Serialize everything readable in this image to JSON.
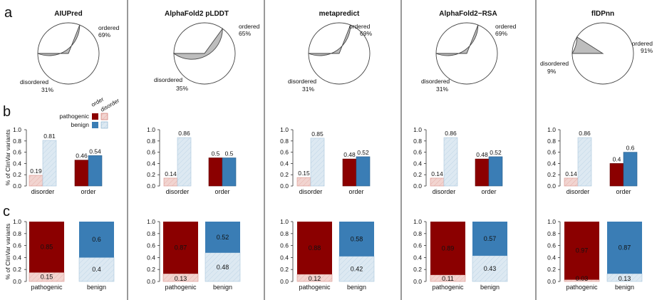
{
  "panel_letters": [
    "a",
    "b",
    "c"
  ],
  "ylabel": "% of ClinVar variants",
  "legend": {
    "col_headers": [
      "order",
      "disorder"
    ],
    "rows": [
      "pathogenic",
      "benign"
    ]
  },
  "colors": {
    "pathogenic_order": "#8b0000",
    "pathogenic_disorder": "#f2d4d0",
    "benign_order": "#3a7db5",
    "benign_disorder": "#dde9f2",
    "pie_disordered": "#bdbdbd",
    "pie_ordered": "#ffffff"
  },
  "chart_data": [
    {
      "type": "pie",
      "title": "AIUPred",
      "slices": [
        {
          "label": "ordered",
          "value": 69,
          "pct_label": "69%"
        },
        {
          "label": "disordered",
          "value": 31,
          "pct_label": "31%"
        }
      ]
    },
    {
      "type": "pie",
      "title": "AlphaFold2 pLDDT",
      "slices": [
        {
          "label": "ordered",
          "value": 65,
          "pct_label": "65%"
        },
        {
          "label": "disordered",
          "value": 35,
          "pct_label": "35%"
        }
      ]
    },
    {
      "type": "pie",
      "title": "metapredict",
      "slices": [
        {
          "label": "ordered",
          "value": 69,
          "pct_label": "69%"
        },
        {
          "label": "disordered",
          "value": 31,
          "pct_label": "31%"
        }
      ]
    },
    {
      "type": "pie",
      "title": "AlphaFold2−RSA",
      "slices": [
        {
          "label": "ordered",
          "value": 69,
          "pct_label": "69%"
        },
        {
          "label": "disordered",
          "value": 31,
          "pct_label": "31%"
        }
      ]
    },
    {
      "type": "pie",
      "title": "flDPnn",
      "slices": [
        {
          "label": "ordered",
          "value": 91,
          "pct_label": "91%"
        },
        {
          "label": "disordered",
          "value": 9,
          "pct_label": "9%"
        }
      ]
    },
    {
      "type": "bar",
      "method": "AIUPred",
      "categories": [
        "disorder",
        "order"
      ],
      "series": [
        {
          "name": "pathogenic",
          "values": [
            0.19,
            0.46
          ],
          "labels": [
            "0.19",
            "0.46"
          ]
        },
        {
          "name": "benign",
          "values": [
            0.81,
            0.54
          ],
          "labels": [
            "0.81",
            "0.54"
          ]
        }
      ],
      "ylim": [
        0,
        1
      ],
      "yticks": [
        "0.0",
        "0.2",
        "0.4",
        "0.6",
        "0.8",
        "1.0"
      ]
    },
    {
      "type": "bar",
      "method": "AlphaFold2 pLDDT",
      "categories": [
        "disorder",
        "order"
      ],
      "series": [
        {
          "name": "pathogenic",
          "values": [
            0.14,
            0.5
          ],
          "labels": [
            "0.14",
            "0.5"
          ]
        },
        {
          "name": "benign",
          "values": [
            0.86,
            0.5
          ],
          "labels": [
            "0.86",
            "0.5"
          ]
        }
      ],
      "ylim": [
        0,
        1
      ],
      "yticks": [
        "0.0",
        "0.2",
        "0.4",
        "0.6",
        "0.8",
        "1.0"
      ]
    },
    {
      "type": "bar",
      "method": "metapredict",
      "categories": [
        "disorder",
        "order"
      ],
      "series": [
        {
          "name": "pathogenic",
          "values": [
            0.15,
            0.48
          ],
          "labels": [
            "0.15",
            "0.48"
          ]
        },
        {
          "name": "benign",
          "values": [
            0.85,
            0.52
          ],
          "labels": [
            "0.85",
            "0.52"
          ]
        }
      ],
      "ylim": [
        0,
        1
      ],
      "yticks": [
        "0.0",
        "0.2",
        "0.4",
        "0.6",
        "0.8",
        "1.0"
      ]
    },
    {
      "type": "bar",
      "method": "AlphaFold2−RSA",
      "categories": [
        "disorder",
        "order"
      ],
      "series": [
        {
          "name": "pathogenic",
          "values": [
            0.14,
            0.48
          ],
          "labels": [
            "0.14",
            "0.48"
          ]
        },
        {
          "name": "benign",
          "values": [
            0.86,
            0.52
          ],
          "labels": [
            "0.86",
            "0.52"
          ]
        }
      ],
      "ylim": [
        0,
        1
      ],
      "yticks": [
        "0.0",
        "0.2",
        "0.4",
        "0.6",
        "0.8",
        "1.0"
      ]
    },
    {
      "type": "bar",
      "method": "flDPnn",
      "categories": [
        "disorder",
        "order"
      ],
      "series": [
        {
          "name": "pathogenic",
          "values": [
            0.14,
            0.4
          ],
          "labels": [
            "0.14",
            "0.4"
          ]
        },
        {
          "name": "benign",
          "values": [
            0.86,
            0.6
          ],
          "labels": [
            "0.86",
            "0.6"
          ]
        }
      ],
      "ylim": [
        0,
        1
      ],
      "yticks": [
        "0.0",
        "0.2",
        "0.4",
        "0.6",
        "0.8",
        "1.0"
      ]
    },
    {
      "type": "bar",
      "stacked": true,
      "method": "AIUPred",
      "categories": [
        "pathogenic",
        "benign"
      ],
      "series": [
        {
          "name": "disorder",
          "values": [
            0.15,
            0.4
          ],
          "labels": [
            "0.15",
            "0.4"
          ]
        },
        {
          "name": "order",
          "values": [
            0.85,
            0.6
          ],
          "labels": [
            "0.85",
            "0.6"
          ]
        }
      ],
      "ylim": [
        0,
        1
      ],
      "yticks": [
        "0.0",
        "0.2",
        "0.4",
        "0.6",
        "0.8",
        "1.0"
      ]
    },
    {
      "type": "bar",
      "stacked": true,
      "method": "AlphaFold2 pLDDT",
      "categories": [
        "pathogenic",
        "benign"
      ],
      "series": [
        {
          "name": "disorder",
          "values": [
            0.13,
            0.48
          ],
          "labels": [
            "0.13",
            "0.48"
          ]
        },
        {
          "name": "order",
          "values": [
            0.87,
            0.52
          ],
          "labels": [
            "0.87",
            "0.52"
          ]
        }
      ],
      "ylim": [
        0,
        1
      ],
      "yticks": [
        "0.0",
        "0.2",
        "0.4",
        "0.6",
        "0.8",
        "1.0"
      ]
    },
    {
      "type": "bar",
      "stacked": true,
      "method": "metapredict",
      "categories": [
        "pathogenic",
        "benign"
      ],
      "series": [
        {
          "name": "disorder",
          "values": [
            0.12,
            0.42
          ],
          "labels": [
            "0.12",
            "0.42"
          ]
        },
        {
          "name": "order",
          "values": [
            0.88,
            0.58
          ],
          "labels": [
            "0.88",
            "0.58"
          ]
        }
      ],
      "ylim": [
        0,
        1
      ],
      "yticks": [
        "0.0",
        "0.2",
        "0.4",
        "0.6",
        "0.8",
        "1.0"
      ]
    },
    {
      "type": "bar",
      "stacked": true,
      "method": "AlphaFold2−RSA",
      "categories": [
        "pathogenic",
        "benign"
      ],
      "series": [
        {
          "name": "disorder",
          "values": [
            0.11,
            0.43
          ],
          "labels": [
            "0.11",
            "0.43"
          ]
        },
        {
          "name": "order",
          "values": [
            0.89,
            0.57
          ],
          "labels": [
            "0.89",
            "0.57"
          ]
        }
      ],
      "ylim": [
        0,
        1
      ],
      "yticks": [
        "0.0",
        "0.2",
        "0.4",
        "0.6",
        "0.8",
        "1.0"
      ]
    },
    {
      "type": "bar",
      "stacked": true,
      "method": "flDPnn",
      "categories": [
        "pathogenic",
        "benign"
      ],
      "series": [
        {
          "name": "disorder",
          "values": [
            0.03,
            0.13
          ],
          "labels": [
            "0.03",
            "0.13"
          ]
        },
        {
          "name": "order",
          "values": [
            0.97,
            0.87
          ],
          "labels": [
            "0.97",
            "0.87"
          ]
        }
      ],
      "ylim": [
        0,
        1
      ],
      "yticks": [
        "0.0",
        "0.2",
        "0.4",
        "0.6",
        "0.8",
        "1.0"
      ]
    }
  ]
}
